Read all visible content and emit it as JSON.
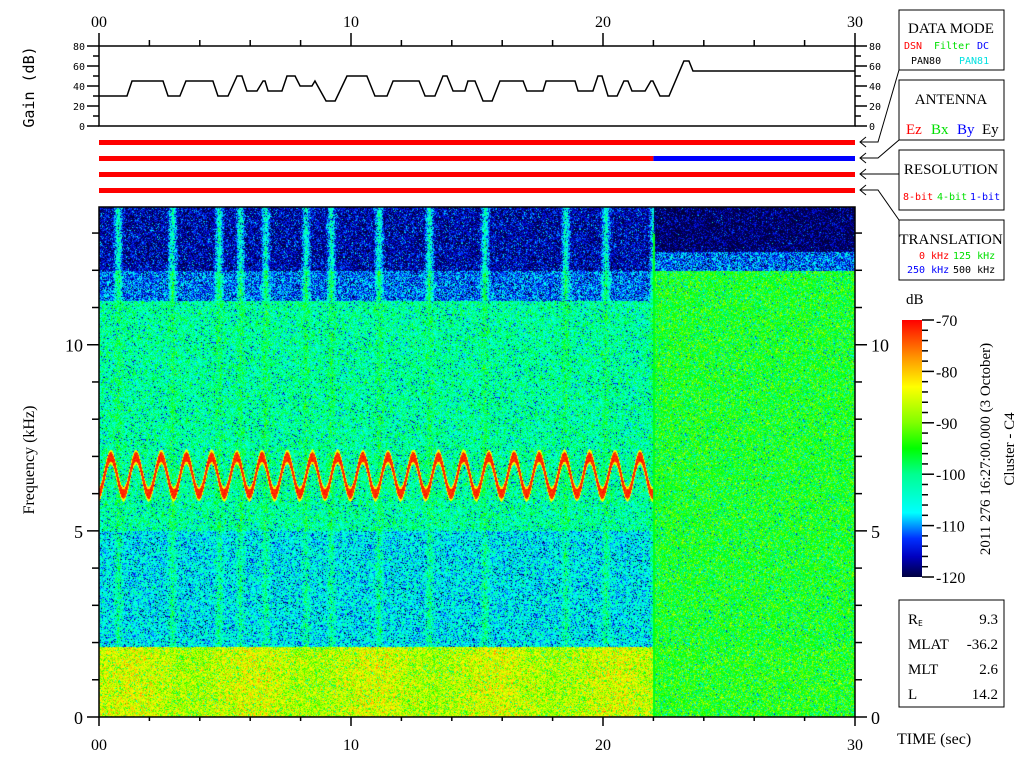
{
  "chart_data": {
    "type": "heatmap",
    "xlabel": "TIME (sec)",
    "ylabel": "Frequency (kHz)",
    "xlim": [
      0,
      30
    ],
    "ylim": [
      0,
      13.7
    ],
    "x_tick_labels": [
      "00",
      "10",
      "20",
      "30"
    ],
    "x_ticks": [
      0,
      10,
      20,
      30
    ],
    "y_ticks": [
      0,
      5,
      10
    ],
    "y_tick_labels": [
      "0",
      "5",
      "10"
    ],
    "colorbar": {
      "label": "dB",
      "range": [
        -120,
        -70
      ],
      "ticks": [
        -70,
        -80,
        -90,
        -100,
        -110,
        -120
      ],
      "tick_labels": [
        "-70",
        "-80",
        "-90",
        "-100",
        "-110",
        "-120"
      ],
      "colormap": [
        "#000040",
        "#0000c0",
        "#0030ff",
        "#00ffff",
        "#00ff90",
        "#00ff00",
        "#80ff00",
        "#ffff00",
        "#ff9900",
        "#ff0000"
      ]
    },
    "gain_panel": {
      "type": "line",
      "ylabel": "Gain (dB)",
      "ylim": [
        0,
        80
      ],
      "y_ticks": [
        0,
        20,
        40,
        60,
        80
      ],
      "y_tick_labels": [
        "0",
        "20",
        "40",
        "60",
        "80"
      ],
      "points": [
        [
          0,
          30
        ],
        [
          0.75,
          30
        ],
        [
          1.11,
          30
        ],
        [
          1.31,
          45
        ],
        [
          2.54,
          45
        ],
        [
          2.74,
          30
        ],
        [
          3.21,
          30
        ],
        [
          3.45,
          45
        ],
        [
          4.52,
          45
        ],
        [
          4.72,
          30
        ],
        [
          5.12,
          30
        ],
        [
          5.48,
          50
        ],
        [
          5.67,
          50
        ],
        [
          5.87,
          35
        ],
        [
          6.27,
          35
        ],
        [
          6.51,
          45
        ],
        [
          6.59,
          45
        ],
        [
          6.71,
          35
        ],
        [
          7.26,
          35
        ],
        [
          7.46,
          50
        ],
        [
          7.78,
          50
        ],
        [
          7.98,
          40
        ],
        [
          8.45,
          40
        ],
        [
          8.57,
          45
        ],
        [
          9.01,
          25
        ],
        [
          9.37,
          25
        ],
        [
          9.84,
          50
        ],
        [
          10.63,
          50
        ],
        [
          10.95,
          30
        ],
        [
          11.43,
          30
        ],
        [
          11.67,
          45
        ],
        [
          12.7,
          45
        ],
        [
          12.94,
          30
        ],
        [
          13.33,
          30
        ],
        [
          13.65,
          50
        ],
        [
          13.81,
          50
        ],
        [
          14.05,
          35
        ],
        [
          14.52,
          35
        ],
        [
          14.64,
          45
        ],
        [
          14.92,
          45
        ],
        [
          15.24,
          25
        ],
        [
          15.6,
          25
        ],
        [
          15.91,
          45
        ],
        [
          16.83,
          45
        ],
        [
          16.98,
          35
        ],
        [
          17.62,
          35
        ],
        [
          17.74,
          45
        ],
        [
          18.89,
          45
        ],
        [
          19.01,
          35
        ],
        [
          19.6,
          35
        ],
        [
          19.8,
          50
        ],
        [
          19.96,
          50
        ],
        [
          20.2,
          30
        ],
        [
          20.56,
          30
        ],
        [
          20.83,
          45
        ],
        [
          20.99,
          45
        ],
        [
          21.15,
          35
        ],
        [
          21.67,
          35
        ],
        [
          21.9,
          45
        ],
        [
          21.98,
          45
        ],
        [
          22.26,
          30
        ],
        [
          22.62,
          30
        ],
        [
          23.21,
          65
        ],
        [
          23.41,
          65
        ],
        [
          23.57,
          55
        ],
        [
          30,
          55
        ]
      ]
    },
    "status_bars": [
      {
        "name": "data-mode",
        "segments": [
          {
            "from": 0,
            "to": 30,
            "color": "#ff0000"
          }
        ]
      },
      {
        "name": "antenna",
        "segments": [
          {
            "from": 0,
            "to": 22.0,
            "color": "#ff0000"
          },
          {
            "from": 22.0,
            "to": 30,
            "color": "#0000ff"
          }
        ]
      },
      {
        "name": "resolution",
        "segments": [
          {
            "from": 0,
            "to": 30,
            "color": "#ff0000"
          }
        ]
      },
      {
        "name": "translation",
        "segments": [
          {
            "from": 0,
            "to": 30,
            "color": "#ff0000"
          }
        ]
      }
    ]
  },
  "legends": {
    "data_mode": {
      "title": "DATA MODE",
      "items": [
        {
          "label": "DSN",
          "color": "#ff0000"
        },
        {
          "label": "Filter",
          "color": "#00e000"
        },
        {
          "label": "DC",
          "color": "#0000ff"
        },
        {
          "label": "PAN80",
          "color": "#000000"
        },
        {
          "label": "PAN81",
          "color": "#00ffff"
        }
      ]
    },
    "antenna": {
      "title": "ANTENNA",
      "items": [
        {
          "label": "Ez",
          "color": "#ff0000"
        },
        {
          "label": "Bx",
          "color": "#00e000"
        },
        {
          "label": "By",
          "color": "#0000ff"
        },
        {
          "label": "Ey",
          "color": "#000000"
        }
      ]
    },
    "resolution": {
      "title": "RESOLUTION",
      "items": [
        {
          "label": "8-bit",
          "color": "#ff0000"
        },
        {
          "label": "4-bit",
          "color": "#00e000"
        },
        {
          "label": "1-bit",
          "color": "#0000ff"
        }
      ]
    },
    "translation": {
      "title": "TRANSLATION",
      "items": [
        {
          "label": "0 kHz",
          "color": "#ff0000"
        },
        {
          "label": "125 kHz",
          "color": "#00e000"
        },
        {
          "label": "250 kHz",
          "color": "#0000ff"
        },
        {
          "label": "500 kHz",
          "color": "#000000"
        }
      ]
    }
  },
  "info": {
    "datetime": "2011 276 16:27:00.000 (3 October)",
    "spacecraft": "Cluster - C4"
  },
  "position": [
    {
      "label": "R",
      "sub": "E",
      "value": "9.3"
    },
    {
      "label": "MLAT",
      "value": "-36.2"
    },
    {
      "label": "MLT",
      "value": "2.6"
    },
    {
      "label": "L",
      "value": "14.2"
    }
  ]
}
